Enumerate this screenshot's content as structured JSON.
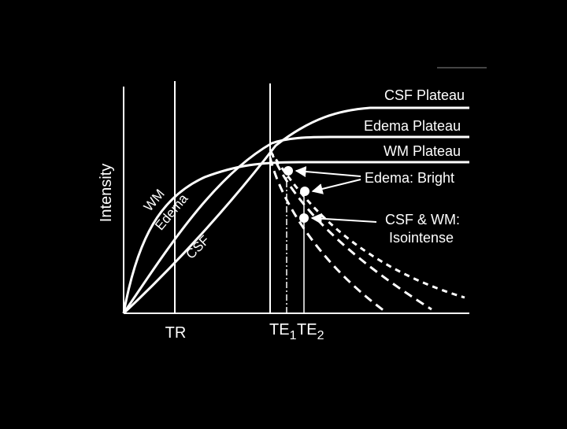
{
  "colors": {
    "background": "#000000",
    "foreground": "#ffffff"
  },
  "axes": {
    "ylabel": "Intensity",
    "xticks": {
      "tr": "TR",
      "te1_main": "TE",
      "te1_sub": "1",
      "te2_main": "TE",
      "te2_sub": "2"
    }
  },
  "curve_labels": {
    "wm": "WM",
    "edema": "Edema",
    "csf": "CSF"
  },
  "plateaus": {
    "csf": "CSF Plateau",
    "edema": "Edema Plateau",
    "wm": "WM Plateau"
  },
  "annotations": {
    "edema_bright": "Edema: Bright",
    "csf_wm_line1": "CSF & WM:",
    "csf_wm_line2": "Isointense"
  }
}
